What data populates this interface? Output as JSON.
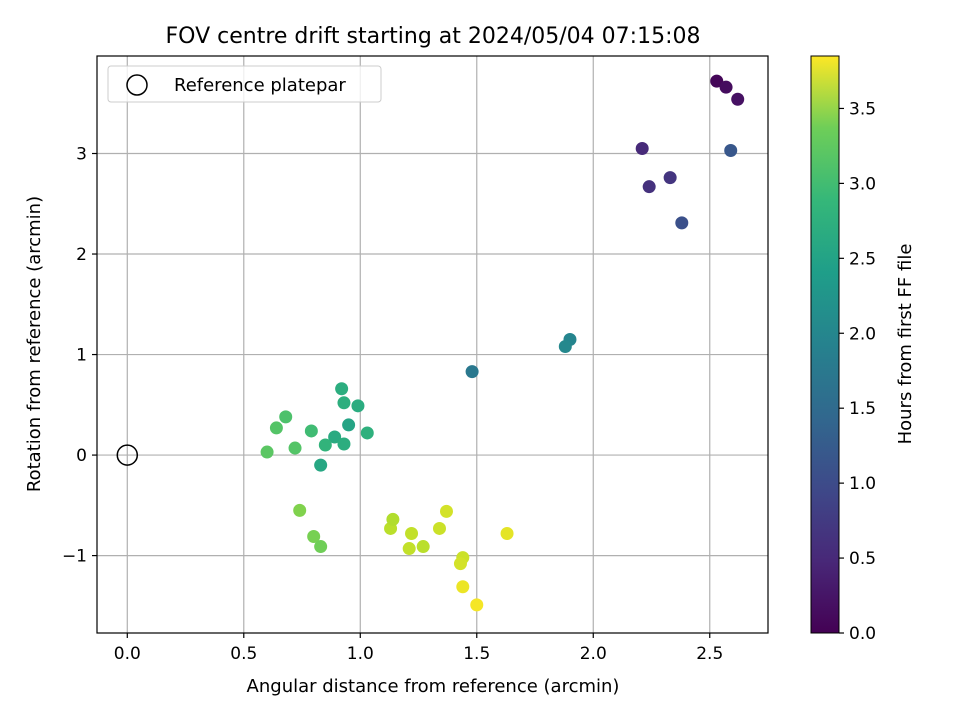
{
  "chart_data": {
    "type": "scatter",
    "title": "FOV centre drift starting at 2024/05/04 07:15:08",
    "xlabel": "Angular distance from reference (arcmin)",
    "ylabel": "Rotation from reference (arcmin)",
    "xlim": [
      -0.13,
      2.75
    ],
    "ylim": [
      -1.77,
      3.97
    ],
    "xticks": [
      0.0,
      0.5,
      1.0,
      1.5,
      2.0,
      2.5
    ],
    "xtick_labels": [
      "0.0",
      "0.5",
      "1.0",
      "1.5",
      "2.0",
      "2.5"
    ],
    "yticks": [
      -1,
      0,
      1,
      2,
      3
    ],
    "ytick_labels": [
      "−1",
      "0",
      "1",
      "2",
      "3"
    ],
    "grid": true,
    "legend": {
      "placement": "top-left",
      "entries": [
        {
          "label": "Reference platepar",
          "marker": "open-circle"
        }
      ]
    },
    "reference_point": {
      "x": 0.0,
      "y": 0.0
    },
    "colorbar": {
      "label": "Hours from first FF file",
      "colormap": "viridis",
      "range": [
        0.0,
        3.85
      ],
      "ticks": [
        0.0,
        0.5,
        1.0,
        1.5,
        2.0,
        2.5,
        3.0,
        3.5
      ],
      "tick_labels": [
        "0.0",
        "0.5",
        "1.0",
        "1.5",
        "2.0",
        "2.5",
        "3.0",
        "3.5"
      ]
    },
    "points": [
      {
        "x": 2.53,
        "y": 3.72,
        "hours": 0.05
      },
      {
        "x": 2.57,
        "y": 3.66,
        "hours": 0.12
      },
      {
        "x": 2.62,
        "y": 3.54,
        "hours": 0.18
      },
      {
        "x": 2.21,
        "y": 3.05,
        "hours": 0.45
      },
      {
        "x": 2.24,
        "y": 2.67,
        "hours": 0.55
      },
      {
        "x": 2.33,
        "y": 2.76,
        "hours": 0.6
      },
      {
        "x": 2.38,
        "y": 2.31,
        "hours": 0.95
      },
      {
        "x": 2.59,
        "y": 3.03,
        "hours": 1.05
      },
      {
        "x": 1.9,
        "y": 1.15,
        "hours": 1.75
      },
      {
        "x": 1.88,
        "y": 1.08,
        "hours": 1.8
      },
      {
        "x": 1.48,
        "y": 0.83,
        "hours": 1.55
      },
      {
        "x": 0.92,
        "y": 0.66,
        "hours": 2.4
      },
      {
        "x": 0.93,
        "y": 0.52,
        "hours": 2.42
      },
      {
        "x": 0.99,
        "y": 0.49,
        "hours": 2.38
      },
      {
        "x": 0.95,
        "y": 0.3,
        "hours": 2.25
      },
      {
        "x": 1.03,
        "y": 0.22,
        "hours": 2.45
      },
      {
        "x": 0.89,
        "y": 0.18,
        "hours": 2.35
      },
      {
        "x": 0.85,
        "y": 0.1,
        "hours": 2.5
      },
      {
        "x": 0.93,
        "y": 0.11,
        "hours": 2.4
      },
      {
        "x": 0.83,
        "y": -0.1,
        "hours": 2.3
      },
      {
        "x": 0.79,
        "y": 0.24,
        "hours": 2.65
      },
      {
        "x": 0.68,
        "y": 0.38,
        "hours": 2.75
      },
      {
        "x": 0.64,
        "y": 0.27,
        "hours": 2.8
      },
      {
        "x": 0.6,
        "y": 0.03,
        "hours": 2.85
      },
      {
        "x": 0.72,
        "y": 0.07,
        "hours": 2.8
      },
      {
        "x": 0.74,
        "y": -0.55,
        "hours": 3.1
      },
      {
        "x": 0.8,
        "y": -0.81,
        "hours": 3.05
      },
      {
        "x": 0.83,
        "y": -0.91,
        "hours": 3.0
      },
      {
        "x": 1.13,
        "y": -0.73,
        "hours": 3.45
      },
      {
        "x": 1.14,
        "y": -0.64,
        "hours": 3.4
      },
      {
        "x": 1.22,
        "y": -0.78,
        "hours": 3.5
      },
      {
        "x": 1.21,
        "y": -0.93,
        "hours": 3.5
      },
      {
        "x": 1.27,
        "y": -0.91,
        "hours": 3.45
      },
      {
        "x": 1.34,
        "y": -0.73,
        "hours": 3.55
      },
      {
        "x": 1.37,
        "y": -0.56,
        "hours": 3.6
      },
      {
        "x": 1.44,
        "y": -1.02,
        "hours": 3.55
      },
      {
        "x": 1.43,
        "y": -1.08,
        "hours": 3.6
      },
      {
        "x": 1.44,
        "y": -1.31,
        "hours": 3.75
      },
      {
        "x": 1.5,
        "y": -1.49,
        "hours": 3.8
      },
      {
        "x": 1.63,
        "y": -0.78,
        "hours": 3.7
      }
    ]
  }
}
